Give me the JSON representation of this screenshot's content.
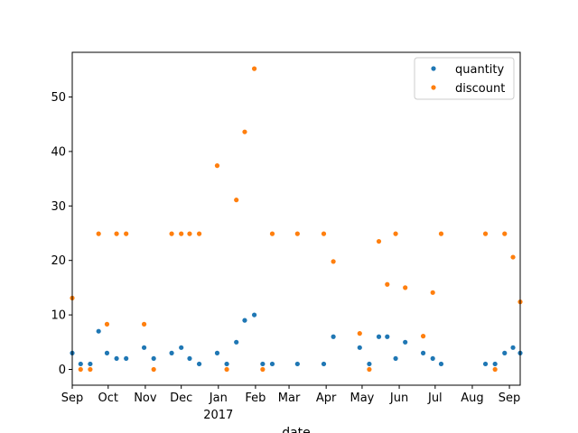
{
  "chart_data": {
    "type": "scatter",
    "title": "",
    "xlabel": "date",
    "ylabel": "",
    "x_axis": "time",
    "xlim": [
      "2016-09-01",
      "2017-09-10"
    ],
    "ylim": [
      -2.9,
      58.2
    ],
    "y_ticks": [
      0,
      10,
      20,
      30,
      40,
      50
    ],
    "x_ticks": [
      {
        "date": "2016-09-01",
        "label": "Sep"
      },
      {
        "date": "2016-10-01",
        "label": "Oct"
      },
      {
        "date": "2016-11-01",
        "label": "Nov"
      },
      {
        "date": "2016-12-01",
        "label": "Dec"
      },
      {
        "date": "2017-01-01",
        "label": "Jan",
        "sublabel": "2017"
      },
      {
        "date": "2017-02-01",
        "label": "Feb"
      },
      {
        "date": "2017-03-01",
        "label": "Mar"
      },
      {
        "date": "2017-04-01",
        "label": "Apr"
      },
      {
        "date": "2017-05-01",
        "label": "May"
      },
      {
        "date": "2017-06-01",
        "label": "Jun"
      },
      {
        "date": "2017-07-01",
        "label": "Jul"
      },
      {
        "date": "2017-08-01",
        "label": "Aug"
      },
      {
        "date": "2017-09-01",
        "label": "Sep"
      }
    ],
    "grid": false,
    "legend_position": "upper right",
    "series": [
      {
        "name": "quantity",
        "color": "#1f77b4",
        "points": [
          [
            "2016-09-01",
            3
          ],
          [
            "2016-09-08",
            1
          ],
          [
            "2016-09-16",
            1
          ],
          [
            "2016-09-23",
            7
          ],
          [
            "2016-09-30",
            3
          ],
          [
            "2016-10-08",
            2
          ],
          [
            "2016-10-16",
            2
          ],
          [
            "2016-10-31",
            4
          ],
          [
            "2016-11-08",
            2
          ],
          [
            "2016-11-23",
            3
          ],
          [
            "2016-12-01",
            4
          ],
          [
            "2016-12-08",
            2
          ],
          [
            "2016-12-16",
            1
          ],
          [
            "2016-12-31",
            3
          ],
          [
            "2017-01-08",
            1
          ],
          [
            "2017-01-16",
            5
          ],
          [
            "2017-01-23",
            9
          ],
          [
            "2017-01-31",
            10
          ],
          [
            "2017-02-07",
            1
          ],
          [
            "2017-02-15",
            1
          ],
          [
            "2017-03-08",
            1
          ],
          [
            "2017-03-30",
            1
          ],
          [
            "2017-04-07",
            6
          ],
          [
            "2017-04-29",
            4
          ],
          [
            "2017-05-07",
            1
          ],
          [
            "2017-05-15",
            6
          ],
          [
            "2017-05-22",
            6
          ],
          [
            "2017-05-29",
            2
          ],
          [
            "2017-06-06",
            5
          ],
          [
            "2017-06-21",
            3
          ],
          [
            "2017-06-29",
            2
          ],
          [
            "2017-07-06",
            1
          ],
          [
            "2017-08-12",
            1
          ],
          [
            "2017-08-20",
            1
          ],
          [
            "2017-08-28",
            3
          ],
          [
            "2017-09-04",
            4
          ],
          [
            "2017-09-10",
            3
          ]
        ]
      },
      {
        "name": "discount",
        "color": "#ff7f0e",
        "points": [
          [
            "2016-09-01",
            13.1
          ],
          [
            "2016-09-08",
            0
          ],
          [
            "2016-09-16",
            0
          ],
          [
            "2016-09-23",
            24.9
          ],
          [
            "2016-09-30",
            8.3
          ],
          [
            "2016-10-08",
            24.9
          ],
          [
            "2016-10-16",
            24.9
          ],
          [
            "2016-10-31",
            8.3
          ],
          [
            "2016-11-08",
            0
          ],
          [
            "2016-11-23",
            24.9
          ],
          [
            "2016-12-01",
            24.9
          ],
          [
            "2016-12-08",
            24.9
          ],
          [
            "2016-12-16",
            24.9
          ],
          [
            "2016-12-31",
            37.4
          ],
          [
            "2017-01-08",
            0
          ],
          [
            "2017-01-16",
            31.1
          ],
          [
            "2017-01-23",
            43.6
          ],
          [
            "2017-01-31",
            55.2
          ],
          [
            "2017-02-07",
            0
          ],
          [
            "2017-02-15",
            24.9
          ],
          [
            "2017-03-08",
            24.9
          ],
          [
            "2017-03-30",
            24.9
          ],
          [
            "2017-04-07",
            19.8
          ],
          [
            "2017-04-29",
            6.6
          ],
          [
            "2017-05-07",
            0
          ],
          [
            "2017-05-15",
            23.5
          ],
          [
            "2017-05-22",
            15.6
          ],
          [
            "2017-05-29",
            24.9
          ],
          [
            "2017-06-06",
            15
          ],
          [
            "2017-06-21",
            6.1
          ],
          [
            "2017-06-29",
            14.1
          ],
          [
            "2017-07-06",
            24.9
          ],
          [
            "2017-08-12",
            24.9
          ],
          [
            "2017-08-20",
            0
          ],
          [
            "2017-08-28",
            24.9
          ],
          [
            "2017-09-04",
            20.6
          ],
          [
            "2017-09-10",
            12.4
          ]
        ]
      }
    ]
  }
}
